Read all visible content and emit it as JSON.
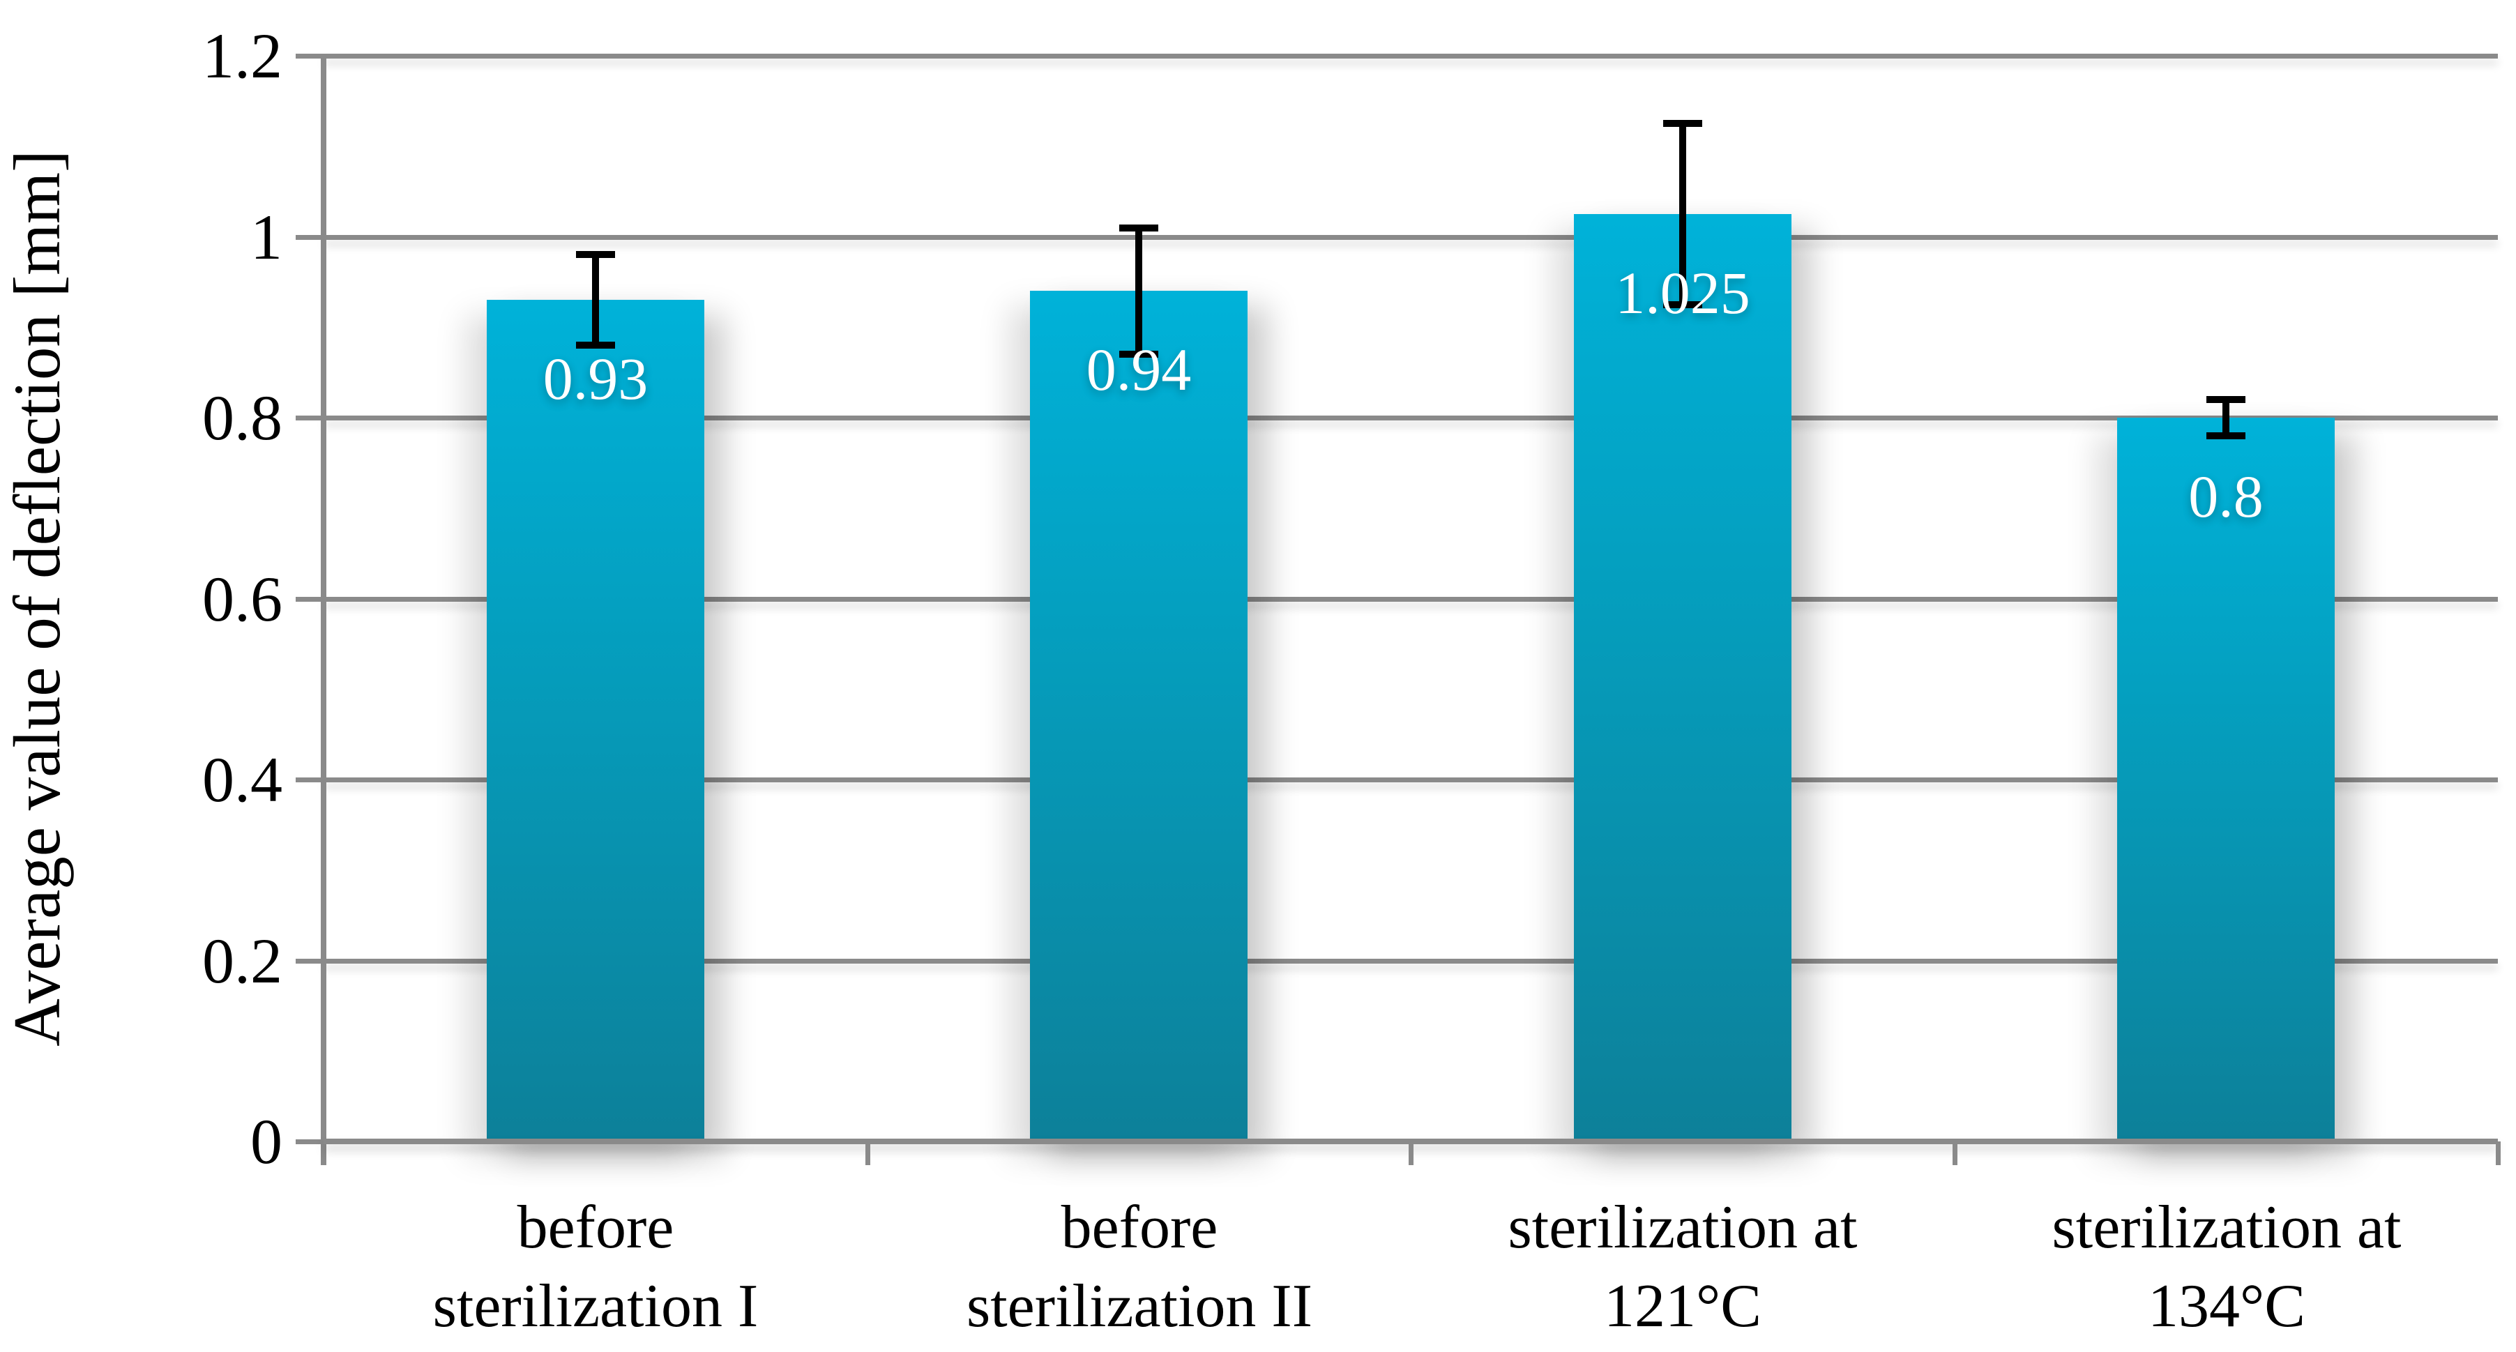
{
  "chart_data": {
    "type": "bar",
    "title": "",
    "xlabel": "",
    "ylabel": "Average value of deflection [mm]",
    "ylim": [
      0,
      1.2
    ],
    "grid": true,
    "legend": false,
    "categories": [
      "before sterilization I",
      "before sterilization II",
      "sterilization at 121°C",
      "sterilization at 134°C"
    ],
    "category_lines": [
      [
        "before",
        "sterilization I"
      ],
      [
        "before",
        "sterilization II"
      ],
      [
        "sterilization at",
        "121°C"
      ],
      [
        "sterilization at",
        "134°C"
      ]
    ],
    "values": [
      0.93,
      0.94,
      1.025,
      0.8
    ],
    "value_labels": [
      "0.93",
      "0.94",
      "1.025",
      "0.8"
    ],
    "errors": [
      0.05,
      0.07,
      0.1,
      0.02
    ],
    "ytick_values": [
      0,
      0.2,
      0.4,
      0.6,
      0.8,
      1,
      1.2
    ],
    "ytick_labels": [
      "0",
      "0.2",
      "0.4",
      "0.6",
      "0.8",
      "1",
      "1.2"
    ],
    "colors": {
      "bar_top": "#00b2d9",
      "bar_bottom": "#0d8099",
      "gridline": "#8a8a8a",
      "error_bar": "#000000",
      "value_label": "#ffffff",
      "axis_text": "#000000"
    }
  }
}
